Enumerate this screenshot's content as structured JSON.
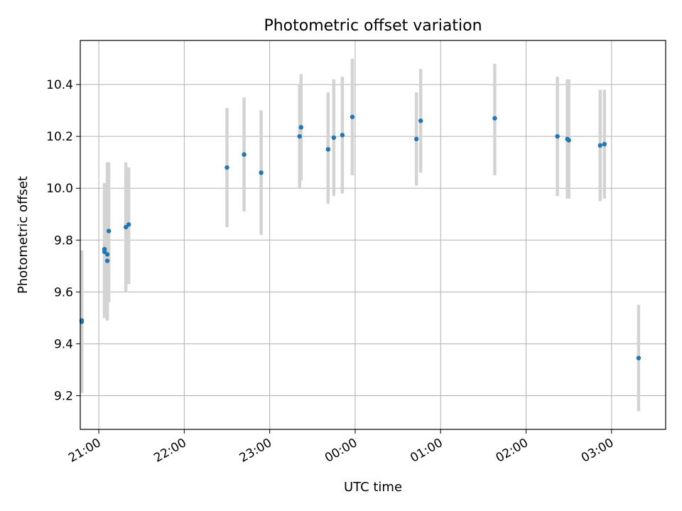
{
  "chart_data": {
    "type": "scatter",
    "title": "Photometric offset variation",
    "xlabel": "UTC time",
    "ylabel": "Photometric offset",
    "x_axis_kind": "time (HH:MM, spanning midnight)",
    "xlim": [
      "20:47",
      "03:38"
    ],
    "ylim": [
      9.07,
      10.57
    ],
    "grid": true,
    "x_ticks": [
      "21:00",
      "22:00",
      "23:00",
      "00:00",
      "01:00",
      "02:00",
      "03:00"
    ],
    "y_ticks": [
      "9.2",
      "9.4",
      "9.6",
      "9.8",
      "10.0",
      "10.2",
      "10.4"
    ],
    "colors": {
      "marker": "#1f77b4",
      "error_bar": "#d3d3d3",
      "grid": "#b0b0b0"
    },
    "points": [
      {
        "x": "20:48",
        "y": 9.49,
        "lo": 9.22,
        "hi": 9.76
      },
      {
        "x": "20:48",
        "y": 9.485,
        "lo": 9.21,
        "hi": 9.76
      },
      {
        "x": "21:04",
        "y": 9.765,
        "lo": 9.5,
        "hi": 10.02
      },
      {
        "x": "21:04",
        "y": 9.755,
        "lo": 9.5,
        "hi": 10.02
      },
      {
        "x": "21:06",
        "y": 9.745,
        "lo": 9.49,
        "hi": 10.1
      },
      {
        "x": "21:06",
        "y": 9.72,
        "lo": 9.49,
        "hi": 10.0
      },
      {
        "x": "21:07",
        "y": 9.835,
        "lo": 9.56,
        "hi": 10.1
      },
      {
        "x": "21:19",
        "y": 9.85,
        "lo": 9.6,
        "hi": 10.1
      },
      {
        "x": "21:21",
        "y": 9.86,
        "lo": 9.63,
        "hi": 10.08
      },
      {
        "x": "22:30",
        "y": 10.08,
        "lo": 9.85,
        "hi": 10.31
      },
      {
        "x": "22:42",
        "y": 10.13,
        "lo": 9.91,
        "hi": 10.35
      },
      {
        "x": "22:54",
        "y": 10.06,
        "lo": 9.82,
        "hi": 10.3
      },
      {
        "x": "23:21",
        "y": 10.2,
        "lo": 10.0,
        "hi": 10.4
      },
      {
        "x": "23:22",
        "y": 10.235,
        "lo": 10.03,
        "hi": 10.44
      },
      {
        "x": "23:41",
        "y": 10.15,
        "lo": 9.94,
        "hi": 10.37
      },
      {
        "x": "23:45",
        "y": 10.195,
        "lo": 9.97,
        "hi": 10.42
      },
      {
        "x": "23:51",
        "y": 10.205,
        "lo": 9.98,
        "hi": 10.43
      },
      {
        "x": "23:58",
        "y": 10.275,
        "lo": 10.05,
        "hi": 10.5
      },
      {
        "x": "00:43",
        "y": 10.19,
        "lo": 10.01,
        "hi": 10.37
      },
      {
        "x": "00:46",
        "y": 10.26,
        "lo": 10.06,
        "hi": 10.46
      },
      {
        "x": "01:38",
        "y": 10.27,
        "lo": 10.05,
        "hi": 10.48
      },
      {
        "x": "02:22",
        "y": 10.2,
        "lo": 9.97,
        "hi": 10.43
      },
      {
        "x": "02:29",
        "y": 10.19,
        "lo": 9.96,
        "hi": 10.42
      },
      {
        "x": "02:30",
        "y": 10.185,
        "lo": 9.96,
        "hi": 10.42
      },
      {
        "x": "02:52",
        "y": 10.165,
        "lo": 9.95,
        "hi": 10.38
      },
      {
        "x": "02:55",
        "y": 10.17,
        "lo": 9.96,
        "hi": 10.38
      },
      {
        "x": "03:19",
        "y": 9.345,
        "lo": 9.14,
        "hi": 9.55
      }
    ]
  }
}
